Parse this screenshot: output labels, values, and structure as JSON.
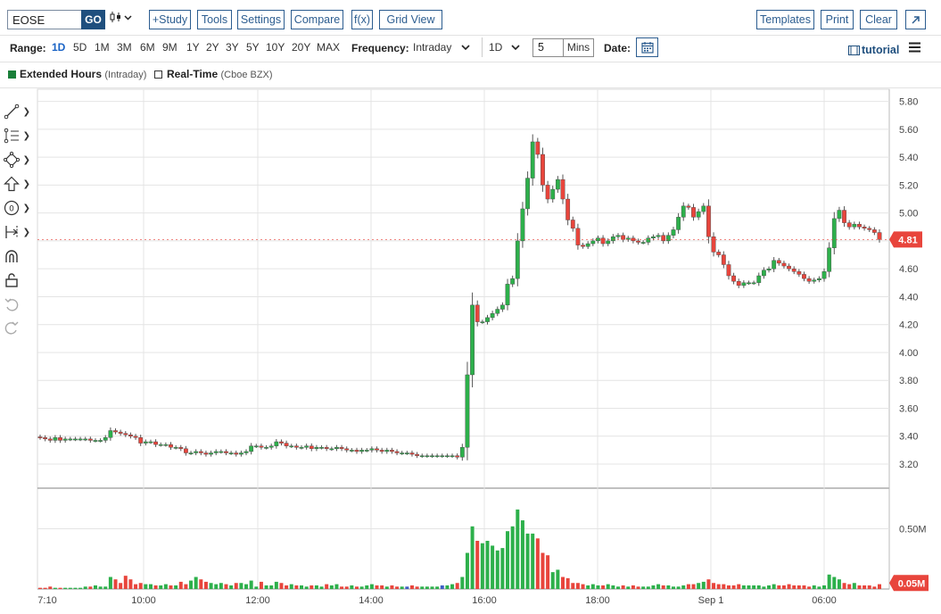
{
  "toolbar": {
    "symbol": "EOSE",
    "go_label": "GO",
    "chart_type_icon": "candlestick-icon",
    "study_label": "+Study",
    "tools_label": "Tools",
    "settings_label": "Settings",
    "compare_label": "Compare",
    "fx_label": "f(x)",
    "grid_view_label": "Grid View",
    "templates_label": "Templates",
    "print_label": "Print",
    "clear_label": "Clear",
    "expand_icon": "expand-arrow-icon"
  },
  "range_bar": {
    "range_label": "Range:",
    "ranges": [
      "1D",
      "5D",
      "1M",
      "3M",
      "6M",
      "9M",
      "1Y",
      "2Y",
      "3Y",
      "5Y",
      "10Y",
      "20Y",
      "MAX"
    ],
    "active_range": "1D",
    "frequency_label": "Frequency:",
    "frequency_value": "Intraday",
    "period_value": "1D",
    "minutes_value": "5",
    "minutes_unit": "Mins",
    "date_label": "Date:",
    "tutorial_label": "tutorial"
  },
  "legend": {
    "extended_label": "Extended Hours",
    "extended_sub": "(Intraday)",
    "extended_color": "#1a7f3a",
    "realtime_label": "Real-Time",
    "realtime_sub": "(Cboe BZX)"
  },
  "left_tools": [
    "trendline-icon",
    "fibonacci-icon",
    "shape-icon",
    "arrow-up-icon",
    "label-icon",
    "measure-icon",
    "magnet-icon",
    "unlock-icon",
    "undo-icon",
    "redo-icon"
  ],
  "colors": {
    "up": "#2db04b",
    "down": "#e8453c",
    "neutral": "#3d5fc4",
    "grid": "#e4e4e4",
    "price_badge": "#e8453c"
  },
  "chart_data": {
    "type": "candlestick",
    "price_axis_ticks": [
      "5.80",
      "5.60",
      "5.40",
      "5.20",
      "5.00",
      "4.80",
      "4.60",
      "4.40",
      "4.20",
      "4.00",
      "3.80",
      "3.60",
      "3.40",
      "3.20"
    ],
    "ylim": [
      3.08,
      5.86
    ],
    "last_price_label": "4.81",
    "last_price": 4.81,
    "volume_axis_label": "0.50M",
    "volume_last_label": "0.05M",
    "time_axis_labels": [
      "7:10",
      "10:00",
      "12:00",
      "14:00",
      "16:00",
      "18:00",
      "Sep 1",
      "06:00"
    ],
    "closes": [
      3.39,
      3.38,
      3.37,
      3.39,
      3.37,
      3.38,
      3.38,
      3.38,
      3.38,
      3.38,
      3.37,
      3.37,
      3.37,
      3.39,
      3.44,
      3.43,
      3.42,
      3.41,
      3.4,
      3.39,
      3.35,
      3.36,
      3.36,
      3.34,
      3.34,
      3.34,
      3.32,
      3.32,
      3.31,
      3.28,
      3.28,
      3.29,
      3.28,
      3.27,
      3.28,
      3.29,
      3.29,
      3.28,
      3.28,
      3.27,
      3.28,
      3.29,
      3.33,
      3.33,
      3.32,
      3.32,
      3.33,
      3.36,
      3.35,
      3.33,
      3.33,
      3.32,
      3.32,
      3.33,
      3.31,
      3.32,
      3.32,
      3.31,
      3.31,
      3.32,
      3.31,
      3.3,
      3.3,
      3.29,
      3.3,
      3.3,
      3.31,
      3.3,
      3.29,
      3.3,
      3.29,
      3.28,
      3.28,
      3.28,
      3.27,
      3.26,
      3.26,
      3.26,
      3.26,
      3.26,
      3.26,
      3.26,
      3.26,
      3.25,
      3.32,
      3.84,
      4.34,
      4.22,
      4.22,
      4.25,
      4.28,
      4.31,
      4.34,
      4.49,
      4.53,
      4.8,
      5.03,
      5.25,
      5.51,
      5.42,
      5.2,
      5.1,
      5.17,
      5.24,
      5.1,
      4.95,
      4.89,
      4.77,
      4.76,
      4.78,
      4.8,
      4.82,
      4.78,
      4.8,
      4.83,
      4.84,
      4.81,
      4.82,
      4.8,
      4.79,
      4.79,
      4.82,
      4.83,
      4.84,
      4.8,
      4.84,
      4.88,
      4.97,
      5.05,
      5.04,
      4.97,
      5.01,
      5.05,
      4.83,
      4.72,
      4.7,
      4.63,
      4.55,
      4.51,
      4.48,
      4.5,
      4.5,
      4.5,
      4.55,
      4.59,
      4.6,
      4.66,
      4.64,
      4.62,
      4.6,
      4.58,
      4.56,
      4.53,
      4.51,
      4.52,
      4.53,
      4.58,
      4.75,
      4.96,
      5.02,
      4.93,
      4.9,
      4.92,
      4.9,
      4.89,
      4.88,
      4.86,
      4.81
    ],
    "volumes_m": [
      0.01,
      0.01,
      0.02,
      0.01,
      0.01,
      0.01,
      0.01,
      0.01,
      0.01,
      0.02,
      0.02,
      0.03,
      0.02,
      0.02,
      0.1,
      0.08,
      0.05,
      0.11,
      0.08,
      0.04,
      0.05,
      0.04,
      0.04,
      0.03,
      0.03,
      0.04,
      0.03,
      0.03,
      0.06,
      0.04,
      0.07,
      0.1,
      0.08,
      0.06,
      0.05,
      0.04,
      0.05,
      0.04,
      0.03,
      0.05,
      0.05,
      0.04,
      0.07,
      0.02,
      0.06,
      0.03,
      0.03,
      0.06,
      0.05,
      0.03,
      0.04,
      0.03,
      0.03,
      0.02,
      0.03,
      0.03,
      0.02,
      0.04,
      0.03,
      0.04,
      0.02,
      0.02,
      0.03,
      0.02,
      0.02,
      0.03,
      0.04,
      0.03,
      0.03,
      0.02,
      0.03,
      0.02,
      0.02,
      0.02,
      0.03,
      0.02,
      0.02,
      0.02,
      0.02,
      0.02,
      0.03,
      0.03,
      0.04,
      0.05,
      0.1,
      0.3,
      0.52,
      0.4,
      0.38,
      0.4,
      0.36,
      0.32,
      0.34,
      0.48,
      0.52,
      0.66,
      0.57,
      0.46,
      0.46,
      0.42,
      0.3,
      0.28,
      0.14,
      0.16,
      0.1,
      0.09,
      0.05,
      0.05,
      0.04,
      0.03,
      0.04,
      0.03,
      0.03,
      0.04,
      0.03,
      0.02,
      0.03,
      0.02,
      0.03,
      0.02,
      0.02,
      0.02,
      0.03,
      0.04,
      0.03,
      0.03,
      0.02,
      0.02,
      0.03,
      0.04,
      0.04,
      0.05,
      0.06,
      0.08,
      0.05,
      0.04,
      0.04,
      0.03,
      0.03,
      0.04,
      0.03,
      0.03,
      0.03,
      0.03,
      0.02,
      0.03,
      0.04,
      0.03,
      0.03,
      0.04,
      0.03,
      0.03,
      0.03,
      0.02,
      0.03,
      0.02,
      0.03,
      0.12,
      0.1,
      0.08,
      0.05,
      0.04,
      0.05,
      0.03,
      0.03,
      0.03,
      0.02,
      0.04
    ]
  }
}
